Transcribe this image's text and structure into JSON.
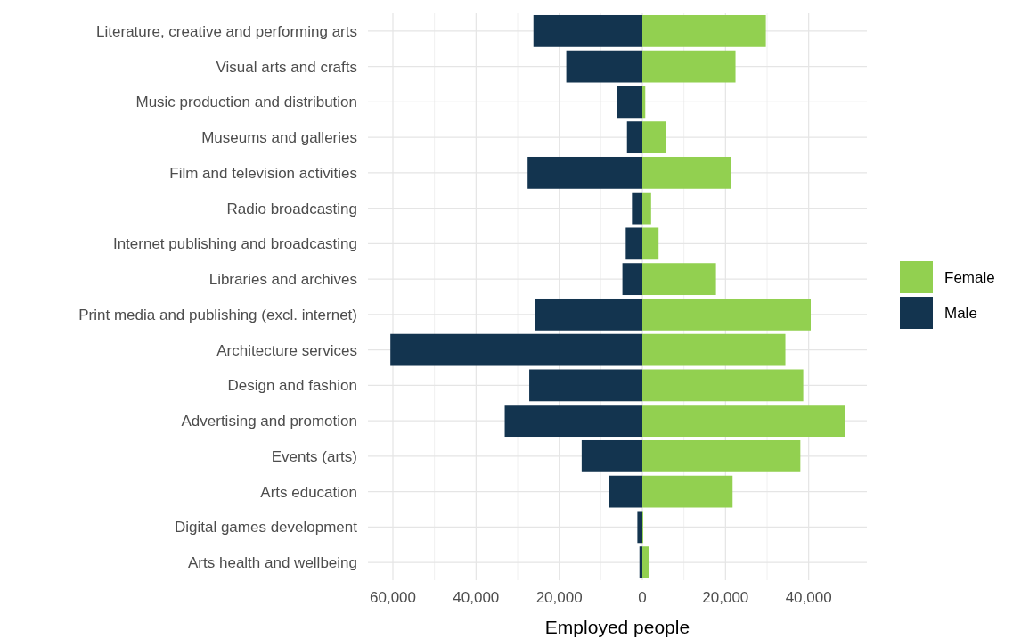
{
  "chart_data": {
    "type": "bar",
    "orientation": "horizontal",
    "xlabel": "Employed people",
    "categories": [
      "Literature, creative and performing arts",
      "Visual arts and crafts",
      "Music production and distribution",
      "Museums and galleries",
      "Film and television activities",
      "Radio broadcasting",
      "Internet publishing and broadcasting",
      "Libraries and archives",
      "Print media and publishing (excl. internet)",
      "Architecture services",
      "Design and fashion",
      "Advertising and promotion",
      "Events (arts)",
      "Arts education",
      "Digital games development",
      "Arts health and wellbeing"
    ],
    "series": [
      {
        "name": "Female",
        "color": "#92d050",
        "values": [
          29700,
          22400,
          700,
          5700,
          21300,
          2100,
          3900,
          17700,
          40500,
          34400,
          38700,
          48800,
          38000,
          21700,
          200,
          1600
        ]
      },
      {
        "name": "Male",
        "color": "#13344f",
        "values": [
          -26200,
          -18300,
          -6200,
          -3700,
          -27600,
          -2500,
          -4000,
          -4800,
          -25800,
          -60600,
          -27200,
          -33100,
          -14600,
          -8100,
          -1200,
          -700
        ]
      }
    ],
    "xlim": [
      -66000,
      54000
    ],
    "xticks": [
      {
        "value": -60000,
        "label": "60,000"
      },
      {
        "value": -40000,
        "label": "40,000"
      },
      {
        "value": -20000,
        "label": "20,000"
      },
      0,
      {
        "value": 20000,
        "label": "20,000"
      },
      {
        "value": 40000,
        "label": "40,000"
      }
    ],
    "grid": true,
    "legend": "right",
    "stacked": true
  }
}
